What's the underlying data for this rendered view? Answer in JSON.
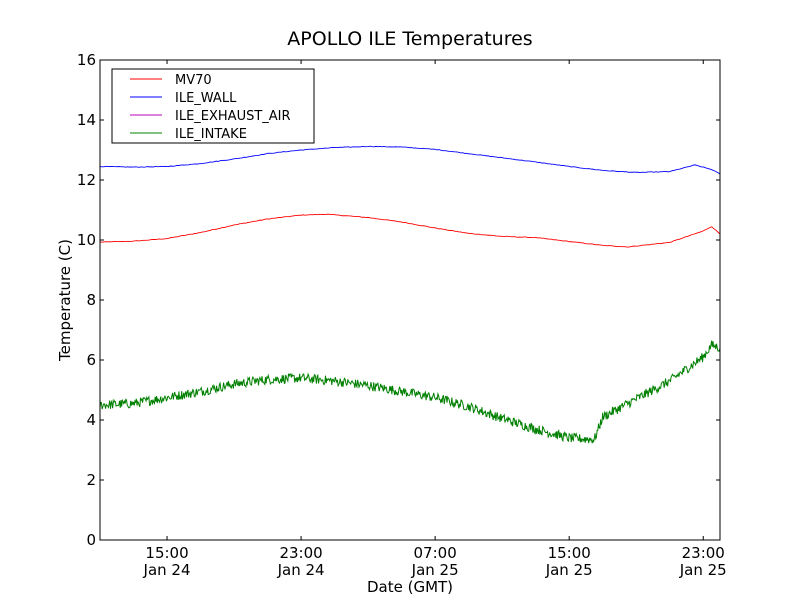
{
  "chart_data": {
    "type": "line",
    "title": "APOLLO ILE Temperatures",
    "xlabel": "Date (GMT)",
    "ylabel": "Temperature (C)",
    "ylim": [
      0,
      16
    ],
    "yticks": [
      "0",
      "2",
      "4",
      "6",
      "8",
      "10",
      "12",
      "14",
      "16"
    ],
    "xlim": [
      "2014-01-24T11:00",
      "2014-01-26T00:00"
    ],
    "xticks": [
      {
        "time": "2014-01-24T15:00",
        "line1": "15:00",
        "line2": "Jan 24"
      },
      {
        "time": "2014-01-24T23:00",
        "line1": "23:00",
        "line2": "Jan 24"
      },
      {
        "time": "2014-01-25T07:00",
        "line1": "07:00",
        "line2": "Jan 25"
      },
      {
        "time": "2014-01-25T15:00",
        "line1": "15:00",
        "line2": "Jan 25"
      },
      {
        "time": "2014-01-25T23:00",
        "line1": "23:00",
        "line2": "Jan 25"
      }
    ],
    "legend_position": "top-left",
    "grid": false,
    "series": [
      {
        "name": "MV70",
        "color": "#ff0000",
        "x": [
          "2014-01-24T11:00",
          "2014-01-24T13:00",
          "2014-01-24T15:00",
          "2014-01-24T17:00",
          "2014-01-24T19:00",
          "2014-01-24T21:00",
          "2014-01-24T23:00",
          "2014-01-25T00:30",
          "2014-01-25T03:00",
          "2014-01-25T05:00",
          "2014-01-25T07:00",
          "2014-01-25T09:00",
          "2014-01-25T11:00",
          "2014-01-25T13:00",
          "2014-01-25T15:00",
          "2014-01-25T17:00",
          "2014-01-25T18:30",
          "2014-01-25T21:00",
          "2014-01-25T23:00",
          "2014-01-25T23:30",
          "2014-01-26T00:00"
        ],
        "y": [
          9.93,
          9.96,
          10.05,
          10.25,
          10.5,
          10.7,
          10.83,
          10.86,
          10.75,
          10.6,
          10.4,
          10.22,
          10.12,
          10.08,
          9.95,
          9.82,
          9.77,
          9.92,
          10.3,
          10.45,
          10.2
        ]
      },
      {
        "name": "ILE_WALL",
        "color": "#0000ff",
        "x": [
          "2014-01-24T11:00",
          "2014-01-24T13:00",
          "2014-01-24T15:00",
          "2014-01-24T17:00",
          "2014-01-24T19:00",
          "2014-01-24T21:00",
          "2014-01-24T23:00",
          "2014-01-25T01:00",
          "2014-01-25T03:00",
          "2014-01-25T05:00",
          "2014-01-25T07:00",
          "2014-01-25T09:00",
          "2014-01-25T11:00",
          "2014-01-25T13:00",
          "2014-01-25T15:00",
          "2014-01-25T17:00",
          "2014-01-25T19:00",
          "2014-01-25T21:00",
          "2014-01-25T22:30",
          "2014-01-25T23:30",
          "2014-01-26T00:00"
        ],
        "y": [
          12.45,
          12.43,
          12.45,
          12.55,
          12.7,
          12.88,
          13.0,
          13.08,
          13.12,
          13.1,
          13.02,
          12.88,
          12.74,
          12.6,
          12.45,
          12.32,
          12.25,
          12.28,
          12.5,
          12.35,
          12.2
        ]
      },
      {
        "name": "ILE_EXHAUST_AIR",
        "color": "#bf00bf",
        "x": [],
        "y": []
      },
      {
        "name": "ILE_INTAKE",
        "color": "#008000",
        "x": [
          "2014-01-24T11:00",
          "2014-01-24T13:00",
          "2014-01-24T15:00",
          "2014-01-24T17:00",
          "2014-01-24T19:00",
          "2014-01-24T21:00",
          "2014-01-24T23:00",
          "2014-01-25T01:00",
          "2014-01-25T03:00",
          "2014-01-25T05:00",
          "2014-01-25T07:00",
          "2014-01-25T09:00",
          "2014-01-25T11:00",
          "2014-01-25T13:00",
          "2014-01-25T15:00",
          "2014-01-25T16:30",
          "2014-01-25T17:00",
          "2014-01-25T19:00",
          "2014-01-25T21:00",
          "2014-01-25T23:00",
          "2014-01-25T23:30",
          "2014-01-26T00:00"
        ],
        "y": [
          4.5,
          4.55,
          4.75,
          4.95,
          5.2,
          5.35,
          5.4,
          5.3,
          5.15,
          4.95,
          4.75,
          4.45,
          4.05,
          3.7,
          3.4,
          3.35,
          4.1,
          4.7,
          5.3,
          6.1,
          6.5,
          6.4
        ]
      }
    ]
  }
}
